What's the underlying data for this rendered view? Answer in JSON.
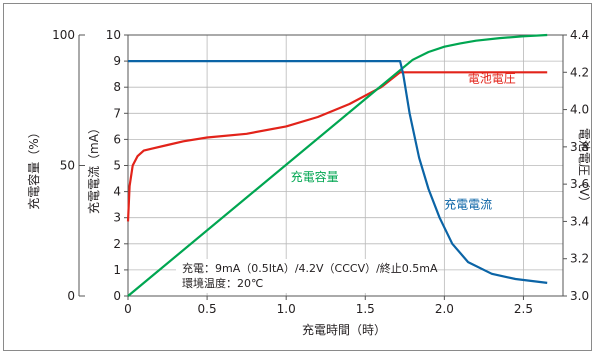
{
  "chart_data": {
    "type": "line",
    "xlabel": "充電時間（時）",
    "xlim": [
      0,
      2.75
    ],
    "x_ticks": [
      "0",
      "0.5",
      "1.0",
      "1.5",
      "2.0",
      "2.5"
    ],
    "axes": {
      "capacity": {
        "label": "充電容量（%）",
        "lim": [
          0,
          100
        ],
        "ticks": [
          "0",
          "50",
          "100"
        ]
      },
      "current": {
        "label": "充電電流（mA）",
        "lim": [
          0,
          10
        ],
        "ticks": [
          "0",
          "1",
          "2",
          "3",
          "4",
          "5",
          "6",
          "7",
          "8",
          "9",
          "10"
        ]
      },
      "voltage": {
        "label": "電池電圧（V）",
        "lim": [
          3.0,
          4.4
        ],
        "ticks": [
          "3.0",
          "3.2",
          "3.4",
          "3.6",
          "3.8",
          "4.0",
          "4.2",
          "4.4"
        ]
      }
    },
    "grid": true,
    "series": [
      {
        "name": "電池電圧",
        "axis": "voltage",
        "color": "#e2231a",
        "x": [
          0,
          0.01,
          0.03,
          0.06,
          0.1,
          0.15,
          0.25,
          0.35,
          0.5,
          0.75,
          1.0,
          1.2,
          1.4,
          1.6,
          1.72,
          2.0,
          2.3,
          2.65
        ],
        "y": [
          3.4,
          3.59,
          3.7,
          3.75,
          3.78,
          3.79,
          3.81,
          3.83,
          3.85,
          3.87,
          3.91,
          3.96,
          4.03,
          4.12,
          4.2,
          4.2,
          4.2,
          4.2
        ]
      },
      {
        "name": "充電容量",
        "axis": "capacity",
        "color": "#00a651",
        "x": [
          0,
          1.72,
          1.8,
          1.9,
          2.0,
          2.1,
          2.2,
          2.35,
          2.5,
          2.65
        ],
        "y": [
          0,
          86.5,
          90.5,
          93.5,
          95.5,
          96.8,
          97.8,
          98.8,
          99.5,
          100
        ]
      },
      {
        "name": "充電電流",
        "axis": "current",
        "color": "#0b64a6",
        "x": [
          0,
          1.72,
          1.74,
          1.78,
          1.84,
          1.9,
          1.97,
          2.05,
          2.15,
          2.3,
          2.45,
          2.65
        ],
        "y": [
          9.0,
          9.0,
          8.5,
          7.0,
          5.3,
          4.1,
          3.0,
          2.0,
          1.3,
          0.85,
          0.65,
          0.5
        ]
      }
    ],
    "annotations": [
      "充電：9mA（0.5ItA）/4.2V（CCCV）/終止0.5mA",
      "環境温度：20℃"
    ]
  }
}
